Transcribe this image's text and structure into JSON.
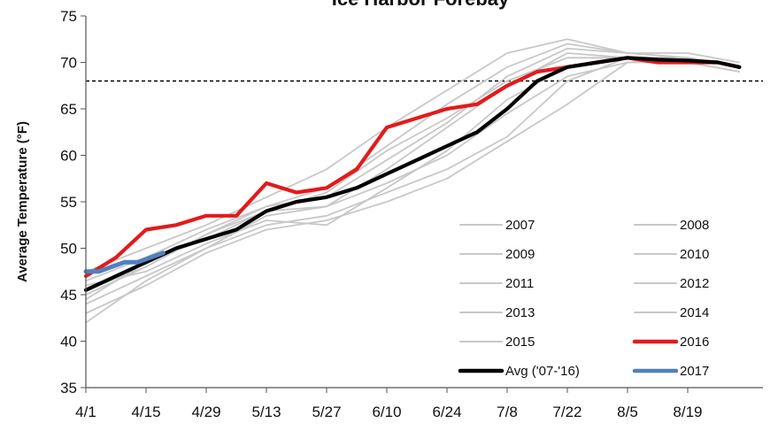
{
  "chart_data": {
    "type": "line",
    "title": "Ice Harbor Forebay",
    "xlabel": "",
    "ylabel": "Average Temperature (°F)",
    "ylim": [
      35,
      75
    ],
    "yticks": [
      35,
      40,
      45,
      50,
      55,
      60,
      65,
      70,
      75
    ],
    "x_start_date": "4/1",
    "x_tick_labels": [
      "4/1",
      "4/15",
      "4/29",
      "5/13",
      "5/27",
      "6/10",
      "6/24",
      "7/8",
      "7/22",
      "8/5",
      "8/19"
    ],
    "reference_line": {
      "y": 68,
      "style": "dashed",
      "color": "#000000"
    },
    "legend": {
      "placement": "bottom-right",
      "columns": 2
    },
    "colors": {
      "historical": "#c8c8c8",
      "series_2016": "#e31a1c",
      "avg": "#000000",
      "series_2017": "#4f81bd"
    },
    "series": [
      {
        "name": "2007",
        "color": "#c8c8c8",
        "x": [
          "4/1",
          "4/15",
          "4/29",
          "5/13",
          "5/27",
          "6/10",
          "6/24",
          "7/8",
          "7/22",
          "8/5",
          "8/19",
          "8/31"
        ],
        "values": [
          44.5,
          48.5,
          51.0,
          54.0,
          54.5,
          58.5,
          63.0,
          67.5,
          71.0,
          70.5,
          70.5,
          69.5
        ]
      },
      {
        "name": "2008",
        "color": "#c8c8c8",
        "x": [
          "4/1",
          "4/15",
          "4/29",
          "5/13",
          "5/27",
          "6/10",
          "6/24",
          "7/8",
          "7/22",
          "8/5",
          "8/19",
          "8/31"
        ],
        "values": [
          42.0,
          46.5,
          50.0,
          52.5,
          53.5,
          56.0,
          58.5,
          62.0,
          68.0,
          70.5,
          70.5,
          69.5
        ]
      },
      {
        "name": "2009",
        "color": "#c8c8c8",
        "x": [
          "4/1",
          "4/15",
          "4/29",
          "5/13",
          "5/27",
          "6/10",
          "6/24",
          "7/8",
          "7/22",
          "8/5",
          "8/19",
          "8/31"
        ],
        "values": [
          45.5,
          48.0,
          51.5,
          54.5,
          55.5,
          59.5,
          63.5,
          68.5,
          71.5,
          71.0,
          70.5,
          69.5
        ]
      },
      {
        "name": "2010",
        "color": "#c8c8c8",
        "x": [
          "4/1",
          "4/15",
          "4/29",
          "5/13",
          "5/27",
          "6/10",
          "6/24",
          "7/8",
          "7/22",
          "8/5",
          "8/19",
          "8/31"
        ],
        "values": [
          46.0,
          47.5,
          50.5,
          53.0,
          52.5,
          56.5,
          60.5,
          66.0,
          69.5,
          70.5,
          70.0,
          69.0
        ]
      },
      {
        "name": "2011",
        "color": "#c8c8c8",
        "x": [
          "4/1",
          "4/15",
          "4/29",
          "5/13",
          "5/27",
          "6/10",
          "6/24",
          "7/8",
          "7/22",
          "8/5",
          "8/19",
          "8/31"
        ],
        "values": [
          43.0,
          46.0,
          49.5,
          52.0,
          53.0,
          55.0,
          57.5,
          61.5,
          65.5,
          70.0,
          70.5,
          69.5
        ]
      },
      {
        "name": "2012",
        "color": "#c8c8c8",
        "x": [
          "4/1",
          "4/15",
          "4/29",
          "5/13",
          "5/27",
          "6/10",
          "6/24",
          "7/8",
          "7/22",
          "8/5",
          "8/19",
          "8/31"
        ],
        "values": [
          44.0,
          47.0,
          50.0,
          53.5,
          54.5,
          57.0,
          60.0,
          64.5,
          68.5,
          70.0,
          70.0,
          69.0
        ]
      },
      {
        "name": "2013",
        "color": "#c8c8c8",
        "x": [
          "4/1",
          "4/15",
          "4/29",
          "5/13",
          "5/27",
          "6/10",
          "6/24",
          "7/8",
          "7/22",
          "8/5",
          "8/19",
          "8/31"
        ],
        "values": [
          45.0,
          48.0,
          51.5,
          54.0,
          56.0,
          60.5,
          64.0,
          68.0,
          70.5,
          70.5,
          70.5,
          69.5
        ]
      },
      {
        "name": "2014",
        "color": "#c8c8c8",
        "x": [
          "4/1",
          "4/15",
          "4/29",
          "5/13",
          "5/27",
          "6/10",
          "6/24",
          "7/8",
          "7/22",
          "8/5",
          "8/19",
          "8/31"
        ],
        "values": [
          46.5,
          49.0,
          52.0,
          54.5,
          56.5,
          61.0,
          65.5,
          69.5,
          72.0,
          71.0,
          70.5,
          69.5
        ]
      },
      {
        "name": "2015",
        "color": "#c8c8c8",
        "x": [
          "4/1",
          "4/15",
          "4/29",
          "5/13",
          "5/27",
          "6/10",
          "6/24",
          "7/8",
          "7/22",
          "8/5",
          "8/19",
          "8/31"
        ],
        "values": [
          47.5,
          50.0,
          52.5,
          55.5,
          58.5,
          63.0,
          67.0,
          71.0,
          72.5,
          71.0,
          71.0,
          70.0
        ]
      },
      {
        "name": "2016",
        "color": "#e31a1c",
        "x": [
          "4/1",
          "4/8",
          "4/15",
          "4/22",
          "4/29",
          "5/6",
          "5/13",
          "5/20",
          "5/27",
          "6/3",
          "6/10",
          "6/17",
          "6/24",
          "7/1",
          "7/8",
          "7/15",
          "7/22",
          "7/29",
          "8/5",
          "8/12",
          "8/19",
          "8/26",
          "8/31"
        ],
        "values": [
          47.0,
          49.0,
          52.0,
          52.5,
          53.5,
          53.5,
          57.0,
          56.0,
          56.5,
          58.5,
          63.0,
          64.0,
          65.0,
          65.5,
          67.5,
          69.0,
          69.5,
          70.0,
          70.5,
          70.0,
          70.0,
          70.0,
          69.5
        ]
      },
      {
        "name": "Avg ('07-'16)",
        "color": "#000000",
        "x": [
          "4/1",
          "4/8",
          "4/15",
          "4/22",
          "4/29",
          "5/6",
          "5/13",
          "5/20",
          "5/27",
          "6/3",
          "6/10",
          "6/17",
          "6/24",
          "7/1",
          "7/8",
          "7/15",
          "7/22",
          "7/29",
          "8/5",
          "8/12",
          "8/19",
          "8/26",
          "8/31"
        ],
        "values": [
          45.5,
          47.0,
          48.5,
          50.0,
          51.0,
          52.0,
          54.0,
          55.0,
          55.5,
          56.5,
          58.0,
          59.5,
          61.0,
          62.5,
          65.0,
          68.0,
          69.5,
          70.0,
          70.5,
          70.3,
          70.2,
          70.0,
          69.5
        ]
      },
      {
        "name": "2017",
        "color": "#4f81bd",
        "x": [
          "4/1",
          "4/4",
          "4/7",
          "4/10",
          "4/13",
          "4/16",
          "4/19"
        ],
        "values": [
          47.5,
          47.5,
          48.0,
          48.5,
          48.5,
          49.0,
          49.5
        ]
      }
    ]
  }
}
